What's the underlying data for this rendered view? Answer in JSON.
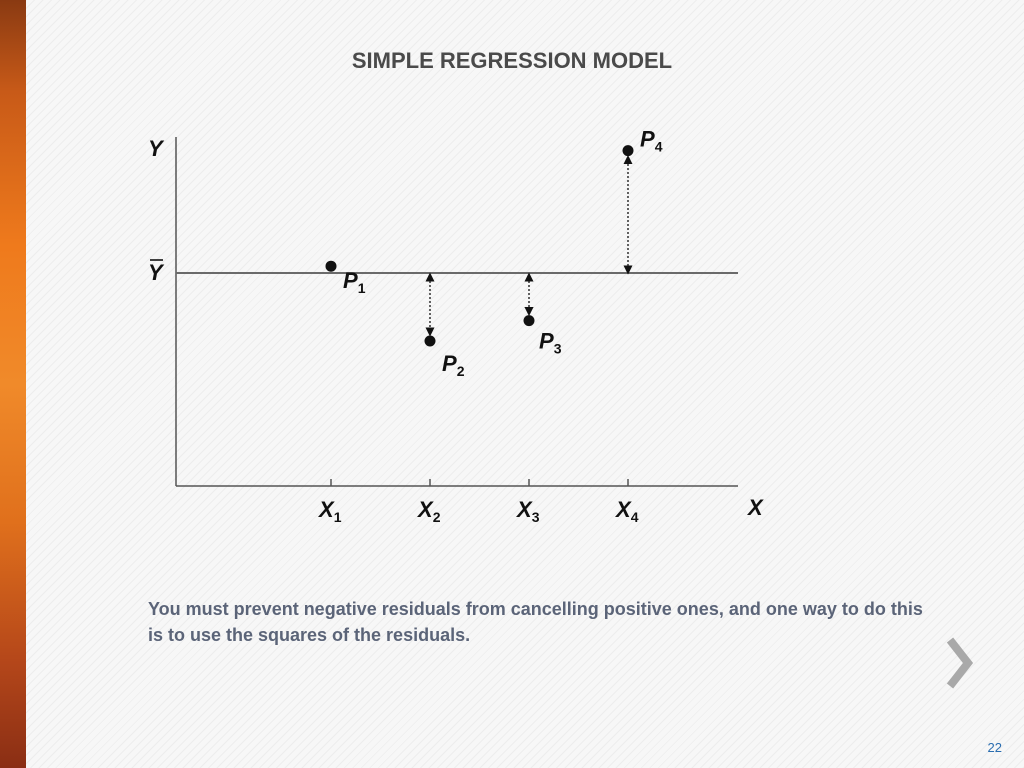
{
  "slide": {
    "title": "SIMPLE REGRESSION MODEL",
    "caption": "You must prevent negative residuals from cancelling positive ones, and one way to do this is to use the squares of the residuals.",
    "page_number": "22"
  },
  "figure": {
    "y_axis_label": "Y",
    "x_axis_label": "X",
    "mean_line_label": "Y",
    "points": [
      {
        "letter": "P",
        "index": "1",
        "x_label": "X",
        "x_index": "1",
        "x": 1,
        "y": 0.1
      },
      {
        "letter": "P",
        "index": "2",
        "x_label": "X",
        "x_index": "2",
        "x": 2,
        "y": -1.0
      },
      {
        "letter": "P",
        "index": "3",
        "x_label": "X",
        "x_index": "3",
        "x": 3,
        "y": -0.7
      },
      {
        "letter": "P",
        "index": "4",
        "x_label": "X",
        "x_index": "4",
        "x": 4,
        "y": 1.8
      }
    ]
  },
  "colors": {
    "accent": "#ef7a1c",
    "text": "#4a4a4a",
    "caption": "#5b6478",
    "chevron": "#a9a9a9",
    "page_number": "#2a6db0"
  },
  "icons": {
    "next": "chevron-right-icon"
  }
}
